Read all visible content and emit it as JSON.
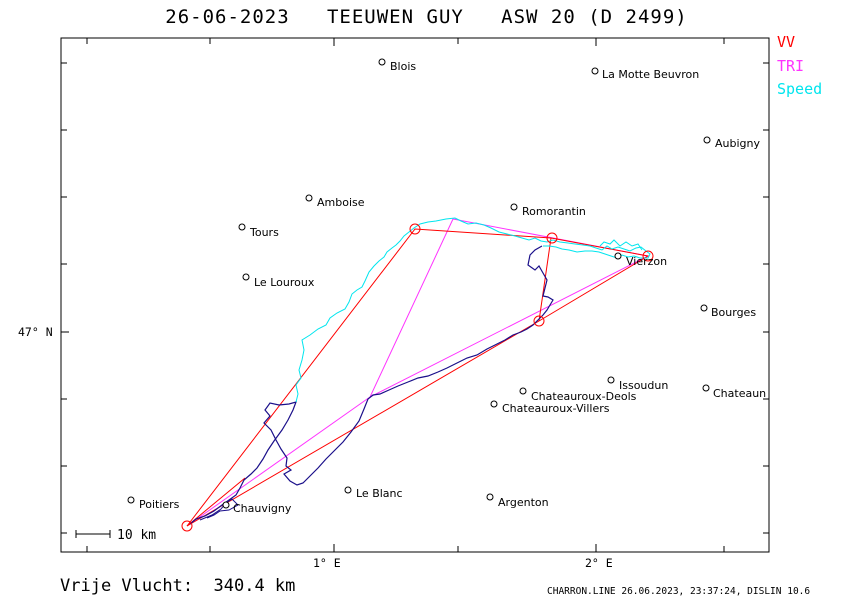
{
  "header": {
    "title": "26-06-2023   TEEUWEN GUY   ASW 20 (D 2499)"
  },
  "legend": {
    "vv": {
      "label": "VV",
      "color": "#ff0000"
    },
    "tri": {
      "label": "TRI",
      "color": "#ff33ff"
    },
    "speed": {
      "label": "Speed",
      "color": "#00e5ee"
    }
  },
  "towns": [
    {
      "name": "Blois"
    },
    {
      "name": "La Motte Beuvron"
    },
    {
      "name": "Aubigny"
    },
    {
      "name": "Amboise"
    },
    {
      "name": "Romorantin"
    },
    {
      "name": "Tours"
    },
    {
      "name": "Vierzon"
    },
    {
      "name": "Le Louroux"
    },
    {
      "name": "Bourges"
    },
    {
      "name": "Issoudun"
    },
    {
      "name": "Chateauroux-Deols"
    },
    {
      "name": "Chateaun"
    },
    {
      "name": "Chateauroux-Villers"
    },
    {
      "name": "Le Blanc"
    },
    {
      "name": "Argenton"
    },
    {
      "name": "Poitiers"
    },
    {
      "name": "Chauvigny"
    }
  ],
  "axes": {
    "x_tick_1": "1° E",
    "x_tick_2": "2° E",
    "y_tick_1": "47° N"
  },
  "scale": {
    "label": "10 km"
  },
  "summary": {
    "distance_text": "Vrije Vlucht:  340.4 km"
  },
  "footer": {
    "text": "CHARRON.LINE 26.06.2023, 23:37:24, DISLIN 10.6"
  },
  "track_colors": {
    "climb": "#00e5ee",
    "glide": "#1a0f8a"
  }
}
